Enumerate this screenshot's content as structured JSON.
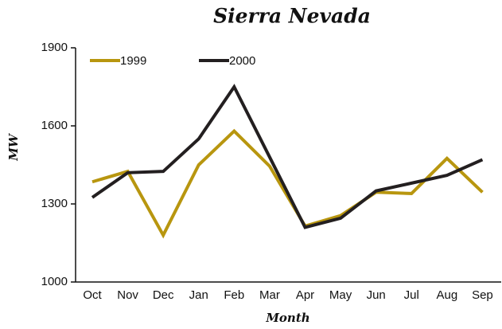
{
  "chart_data": {
    "type": "line",
    "title": "Sierra Nevada",
    "x_label": "Month",
    "y_label": "MW",
    "categories": [
      "Oct",
      "Nov",
      "Dec",
      "Jan",
      "Feb",
      "Mar",
      "Apr",
      "May",
      "Jun",
      "Jul",
      "Aug",
      "Sep"
    ],
    "series": [
      {
        "name": "1999",
        "color": "#b8960f",
        "values": [
          1385,
          1425,
          1180,
          1450,
          1580,
          1445,
          1215,
          1255,
          1345,
          1340,
          1475,
          1345
        ]
      },
      {
        "name": "2000",
        "color": "#231f20",
        "values": [
          1325,
          1420,
          1425,
          1550,
          1750,
          1480,
          1210,
          1245,
          1350,
          1380,
          1410,
          1470
        ]
      }
    ],
    "ylim": [
      1000,
      1900
    ],
    "yticks": [
      1000,
      1300,
      1600,
      1900
    ],
    "grid": false,
    "legend": "top-left"
  }
}
